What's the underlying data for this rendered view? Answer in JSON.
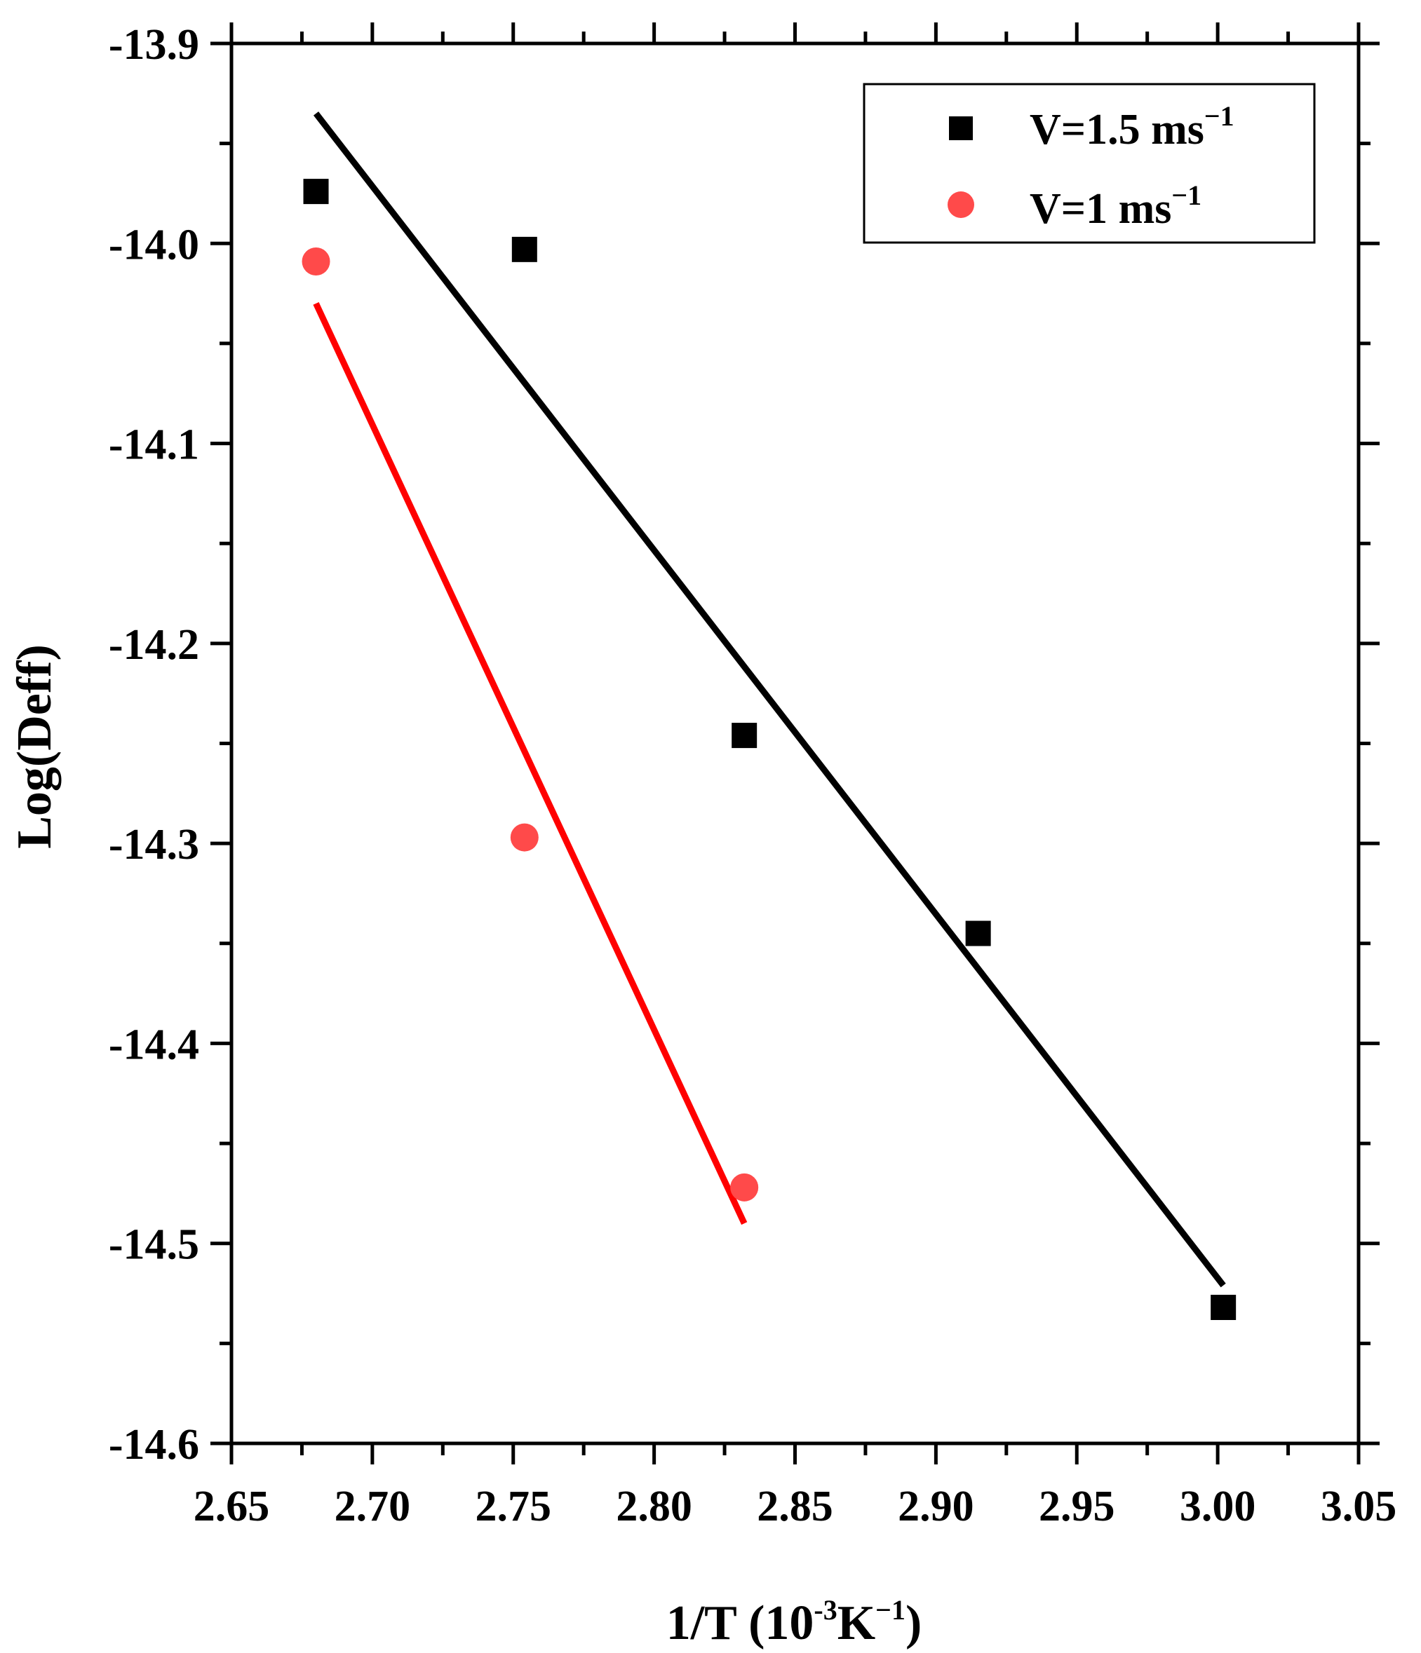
{
  "chart_data": {
    "type": "scatter",
    "title": "",
    "xlabel": {
      "main": "1/T (10",
      "sup1": "-3",
      "mid": "K",
      "sup2": "−1",
      "end": ")"
    },
    "ylabel": "Log(Deff)",
    "xlim": [
      2.65,
      3.05
    ],
    "ylim": [
      -14.6,
      -13.9
    ],
    "xticks": [
      "2.65",
      "2.70",
      "2.75",
      "2.80",
      "2.85",
      "2.90",
      "2.95",
      "3.00",
      "3.05"
    ],
    "xtick_values": [
      2.65,
      2.7,
      2.75,
      2.8,
      2.85,
      2.9,
      2.95,
      3.0,
      3.05
    ],
    "yticks": [
      "-13.9",
      "-14.0",
      "-14.1",
      "-14.2",
      "-14.3",
      "-14.4",
      "-14.5",
      "-14.6"
    ],
    "ytick_values": [
      -13.9,
      -14.0,
      -14.1,
      -14.2,
      -14.3,
      -14.4,
      -14.5,
      -14.6
    ],
    "grid": false,
    "legend_position": "top-right",
    "series": [
      {
        "name": "V=1.5 ms",
        "name_sup": "−1",
        "marker": "square",
        "color": "#000000",
        "x": [
          2.68,
          2.754,
          2.832,
          2.915,
          3.002
        ],
        "y": [
          -13.974,
          -14.003,
          -14.246,
          -14.345,
          -14.532
        ],
        "fit": {
          "x": [
            2.68,
            3.002
          ],
          "y": [
            -13.935,
            -14.521
          ],
          "color": "#000000"
        }
      },
      {
        "name": "V=1 ms",
        "name_sup": "−1",
        "marker": "circle",
        "color": "#ff4a4a",
        "x": [
          2.68,
          2.754,
          2.832
        ],
        "y": [
          -14.009,
          -14.297,
          -14.472
        ],
        "fit": {
          "x": [
            2.68,
            2.832
          ],
          "y": [
            -14.03,
            -14.49
          ],
          "color": "#ff0000"
        }
      }
    ]
  }
}
